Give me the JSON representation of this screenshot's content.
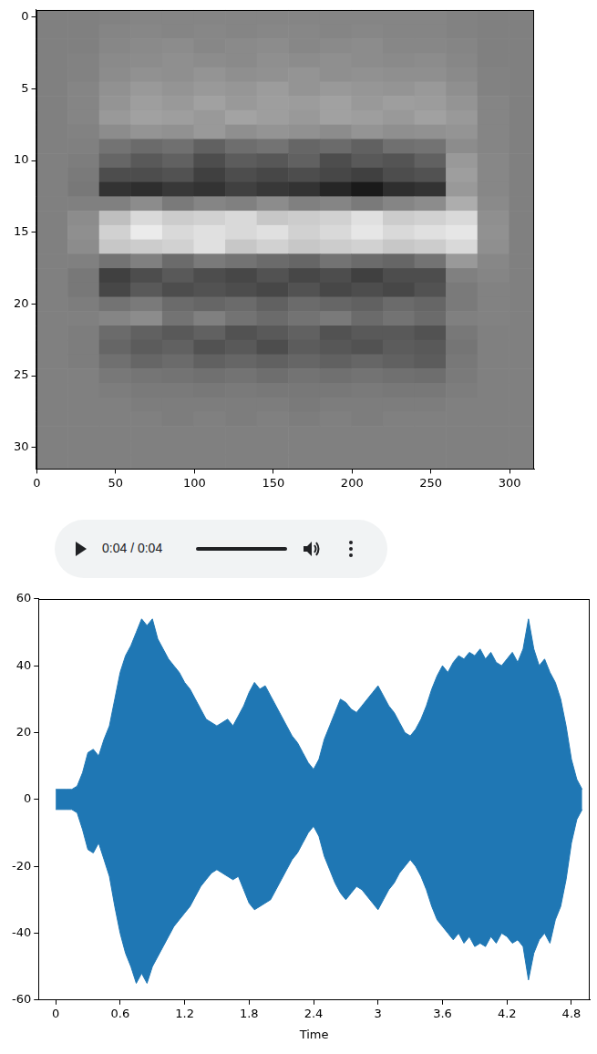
{
  "chart_data": [
    {
      "type": "heatmap",
      "color": "gray",
      "value_range": [
        0,
        1
      ],
      "xlim": [
        -0.5,
        315.5
      ],
      "ylim": [
        31.5,
        -0.5
      ],
      "xticks": [
        0,
        50,
        100,
        150,
        200,
        250,
        300
      ],
      "yticks": [
        0,
        5,
        10,
        15,
        20,
        25,
        30
      ],
      "x_edges": [
        -0.5,
        19.5,
        39.5,
        59.5,
        79.5,
        99.5,
        119.5,
        139.5,
        159.5,
        179.5,
        199.5,
        219.5,
        239.5,
        259.5,
        279.5,
        299.5,
        315.5
      ],
      "y_edges": [
        -0.5,
        0.5,
        1.5,
        2.5,
        3.5,
        4.5,
        5.5,
        6.5,
        7.5,
        8.5,
        9.5,
        10.5,
        11.5,
        12.5,
        13.5,
        14.5,
        15.5,
        16.5,
        17.5,
        18.5,
        19.5,
        20.5,
        21.5,
        22.5,
        23.5,
        24.5,
        25.5,
        26.5,
        27.5,
        28.5,
        29.5,
        30.5,
        31.5
      ],
      "cells": [
        [
          0.5,
          0.5,
          0.51,
          0.52,
          0.52,
          0.52,
          0.52,
          0.52,
          0.52,
          0.52,
          0.52,
          0.52,
          0.52,
          0.51,
          0.5,
          0.5
        ],
        [
          0.5,
          0.5,
          0.52,
          0.53,
          0.52,
          0.53,
          0.52,
          0.53,
          0.53,
          0.52,
          0.53,
          0.52,
          0.52,
          0.51,
          0.5,
          0.5
        ],
        [
          0.5,
          0.5,
          0.53,
          0.54,
          0.55,
          0.53,
          0.54,
          0.55,
          0.53,
          0.54,
          0.55,
          0.53,
          0.53,
          0.52,
          0.5,
          0.5
        ],
        [
          0.5,
          0.51,
          0.54,
          0.55,
          0.56,
          0.55,
          0.54,
          0.56,
          0.55,
          0.56,
          0.55,
          0.54,
          0.55,
          0.53,
          0.5,
          0.5
        ],
        [
          0.5,
          0.51,
          0.55,
          0.57,
          0.56,
          0.58,
          0.56,
          0.57,
          0.58,
          0.56,
          0.57,
          0.56,
          0.56,
          0.54,
          0.51,
          0.5
        ],
        [
          0.5,
          0.52,
          0.57,
          0.6,
          0.58,
          0.6,
          0.59,
          0.61,
          0.58,
          0.6,
          0.59,
          0.58,
          0.6,
          0.56,
          0.51,
          0.5
        ],
        [
          0.5,
          0.52,
          0.58,
          0.62,
          0.6,
          0.63,
          0.6,
          0.62,
          0.61,
          0.63,
          0.6,
          0.62,
          0.61,
          0.58,
          0.52,
          0.5
        ],
        [
          0.5,
          0.52,
          0.6,
          0.63,
          0.62,
          0.6,
          0.64,
          0.62,
          0.6,
          0.63,
          0.62,
          0.6,
          0.63,
          0.6,
          0.52,
          0.5
        ],
        [
          0.5,
          0.51,
          0.55,
          0.58,
          0.57,
          0.6,
          0.56,
          0.58,
          0.57,
          0.55,
          0.58,
          0.56,
          0.57,
          0.58,
          0.52,
          0.5
        ],
        [
          0.5,
          0.5,
          0.45,
          0.42,
          0.44,
          0.38,
          0.43,
          0.45,
          0.4,
          0.42,
          0.38,
          0.44,
          0.45,
          0.55,
          0.52,
          0.5
        ],
        [
          0.5,
          0.49,
          0.4,
          0.35,
          0.38,
          0.3,
          0.36,
          0.34,
          0.38,
          0.3,
          0.35,
          0.33,
          0.38,
          0.6,
          0.53,
          0.5
        ],
        [
          0.5,
          0.48,
          0.3,
          0.3,
          0.32,
          0.25,
          0.3,
          0.28,
          0.3,
          0.28,
          0.25,
          0.3,
          0.32,
          0.62,
          0.53,
          0.5
        ],
        [
          0.5,
          0.47,
          0.2,
          0.18,
          0.22,
          0.2,
          0.25,
          0.22,
          0.2,
          0.15,
          0.1,
          0.18,
          0.2,
          0.6,
          0.53,
          0.5
        ],
        [
          0.5,
          0.5,
          0.5,
          0.55,
          0.48,
          0.52,
          0.5,
          0.55,
          0.5,
          0.52,
          0.48,
          0.52,
          0.55,
          0.68,
          0.54,
          0.5
        ],
        [
          0.5,
          0.55,
          0.75,
          0.85,
          0.8,
          0.82,
          0.85,
          0.78,
          0.8,
          0.82,
          0.88,
          0.8,
          0.82,
          0.85,
          0.56,
          0.5
        ],
        [
          0.5,
          0.56,
          0.82,
          0.92,
          0.85,
          0.88,
          0.85,
          0.88,
          0.82,
          0.85,
          0.9,
          0.85,
          0.88,
          0.9,
          0.57,
          0.5
        ],
        [
          0.5,
          0.55,
          0.78,
          0.8,
          0.82,
          0.88,
          0.78,
          0.82,
          0.78,
          0.8,
          0.82,
          0.78,
          0.8,
          0.85,
          0.56,
          0.5
        ],
        [
          0.5,
          0.5,
          0.45,
          0.5,
          0.42,
          0.48,
          0.45,
          0.42,
          0.4,
          0.45,
          0.42,
          0.4,
          0.45,
          0.6,
          0.53,
          0.5
        ],
        [
          0.5,
          0.47,
          0.25,
          0.3,
          0.35,
          0.3,
          0.28,
          0.32,
          0.28,
          0.3,
          0.25,
          0.3,
          0.3,
          0.5,
          0.52,
          0.5
        ],
        [
          0.5,
          0.47,
          0.28,
          0.35,
          0.3,
          0.32,
          0.3,
          0.28,
          0.32,
          0.28,
          0.3,
          0.28,
          0.32,
          0.48,
          0.51,
          0.5
        ],
        [
          0.5,
          0.49,
          0.45,
          0.48,
          0.42,
          0.4,
          0.42,
          0.38,
          0.42,
          0.4,
          0.38,
          0.42,
          0.4,
          0.48,
          0.51,
          0.5
        ],
        [
          0.5,
          0.5,
          0.52,
          0.55,
          0.45,
          0.5,
          0.45,
          0.42,
          0.45,
          0.48,
          0.42,
          0.45,
          0.42,
          0.5,
          0.51,
          0.5
        ],
        [
          0.5,
          0.49,
          0.42,
          0.38,
          0.35,
          0.38,
          0.32,
          0.35,
          0.38,
          0.32,
          0.35,
          0.35,
          0.32,
          0.47,
          0.5,
          0.5
        ],
        [
          0.5,
          0.49,
          0.4,
          0.36,
          0.38,
          0.32,
          0.35,
          0.3,
          0.36,
          0.34,
          0.32,
          0.36,
          0.35,
          0.46,
          0.5,
          0.5
        ],
        [
          0.5,
          0.49,
          0.44,
          0.4,
          0.42,
          0.38,
          0.4,
          0.38,
          0.4,
          0.38,
          0.4,
          0.38,
          0.36,
          0.47,
          0.5,
          0.5
        ],
        [
          0.5,
          0.5,
          0.47,
          0.46,
          0.45,
          0.44,
          0.45,
          0.43,
          0.45,
          0.44,
          0.45,
          0.44,
          0.43,
          0.48,
          0.5,
          0.5
        ],
        [
          0.5,
          0.5,
          0.49,
          0.48,
          0.48,
          0.47,
          0.48,
          0.47,
          0.47,
          0.47,
          0.48,
          0.47,
          0.47,
          0.49,
          0.5,
          0.5
        ],
        [
          0.5,
          0.5,
          0.5,
          0.49,
          0.49,
          0.49,
          0.49,
          0.49,
          0.48,
          0.49,
          0.49,
          0.49,
          0.49,
          0.5,
          0.5,
          0.5
        ],
        [
          0.5,
          0.5,
          0.5,
          0.5,
          0.49,
          0.5,
          0.49,
          0.5,
          0.49,
          0.5,
          0.49,
          0.5,
          0.5,
          0.5,
          0.5,
          0.5
        ],
        [
          0.5,
          0.5,
          0.5,
          0.5,
          0.5,
          0.5,
          0.5,
          0.5,
          0.5,
          0.5,
          0.5,
          0.5,
          0.5,
          0.5,
          0.5,
          0.5
        ],
        [
          0.5,
          0.5,
          0.5,
          0.5,
          0.5,
          0.5,
          0.5,
          0.5,
          0.5,
          0.5,
          0.5,
          0.5,
          0.5,
          0.5,
          0.5,
          0.5
        ],
        [
          0.5,
          0.5,
          0.5,
          0.5,
          0.5,
          0.5,
          0.5,
          0.5,
          0.5,
          0.5,
          0.5,
          0.5,
          0.5,
          0.5,
          0.5,
          0.5
        ]
      ],
      "grid": false
    },
    {
      "type": "area",
      "xlabel": "Time",
      "color": "#1f77b4",
      "xlim": [
        -0.16,
        4.97
      ],
      "ylim": [
        -60,
        60
      ],
      "xticks": [
        0,
        0.6,
        1.2,
        1.8,
        2.4,
        3,
        3.6,
        4.2,
        4.8
      ],
      "yticks": [
        -60,
        -40,
        -20,
        0,
        20,
        40,
        60
      ],
      "x": [
        0,
        0.05,
        0.1,
        0.15,
        0.2,
        0.25,
        0.3,
        0.35,
        0.4,
        0.45,
        0.5,
        0.55,
        0.6,
        0.65,
        0.7,
        0.75,
        0.8,
        0.85,
        0.9,
        0.95,
        1.0,
        1.05,
        1.1,
        1.15,
        1.2,
        1.25,
        1.3,
        1.35,
        1.4,
        1.45,
        1.5,
        1.55,
        1.6,
        1.65,
        1.7,
        1.75,
        1.8,
        1.85,
        1.9,
        1.95,
        2.0,
        2.05,
        2.1,
        2.15,
        2.2,
        2.25,
        2.3,
        2.35,
        2.4,
        2.45,
        2.5,
        2.55,
        2.6,
        2.65,
        2.7,
        2.75,
        2.8,
        2.85,
        2.9,
        2.95,
        3.0,
        3.05,
        3.1,
        3.15,
        3.2,
        3.25,
        3.3,
        3.35,
        3.4,
        3.45,
        3.5,
        3.55,
        3.6,
        3.65,
        3.7,
        3.75,
        3.8,
        3.85,
        3.9,
        3.95,
        4.0,
        4.05,
        4.1,
        4.15,
        4.2,
        4.25,
        4.3,
        4.35,
        4.4,
        4.45,
        4.5,
        4.55,
        4.6,
        4.65,
        4.7,
        4.75,
        4.8,
        4.85,
        4.9
      ],
      "values": [
        3,
        3,
        3,
        3,
        4,
        8,
        14,
        15,
        13,
        18,
        22,
        30,
        38,
        43,
        46,
        50,
        54,
        52,
        54,
        48,
        45,
        42,
        40,
        38,
        35,
        33,
        30,
        27,
        24,
        23,
        22,
        23,
        24,
        22,
        25,
        28,
        32,
        35,
        33,
        34,
        31,
        28,
        25,
        22,
        19,
        17,
        14,
        11,
        9,
        12,
        18,
        22,
        26,
        30,
        29,
        27,
        26,
        28,
        30,
        32,
        34,
        31,
        28,
        26,
        23,
        20,
        19,
        21,
        24,
        28,
        33,
        37,
        40,
        38,
        41,
        43,
        42,
        44,
        43,
        45,
        42,
        44,
        41,
        40,
        42,
        44,
        41,
        45,
        54,
        45,
        40,
        42,
        38,
        35,
        30,
        22,
        12,
        6,
        3
      ],
      "values_min": [
        -3,
        -3,
        -3,
        -3,
        -4,
        -9,
        -15,
        -16,
        -13,
        -18,
        -23,
        -32,
        -40,
        -46,
        -50,
        -55,
        -52,
        -55,
        -50,
        -47,
        -44,
        -41,
        -38,
        -36,
        -34,
        -32,
        -29,
        -26,
        -24,
        -22,
        -21,
        -22,
        -23,
        -24,
        -23,
        -27,
        -31,
        -33,
        -32,
        -31,
        -30,
        -27,
        -24,
        -21,
        -18,
        -16,
        -13,
        -10,
        -8,
        -11,
        -17,
        -21,
        -25,
        -28,
        -30,
        -28,
        -26,
        -27,
        -29,
        -31,
        -33,
        -30,
        -27,
        -25,
        -22,
        -20,
        -18,
        -20,
        -23,
        -27,
        -32,
        -36,
        -38,
        -40,
        -42,
        -40,
        -43,
        -41,
        -44,
        -43,
        -44,
        -41,
        -43,
        -40,
        -41,
        -43,
        -42,
        -44,
        -54,
        -46,
        -42,
        -40,
        -43,
        -36,
        -32,
        -24,
        -13,
        -6,
        -3
      ],
      "grid": false
    }
  ],
  "audio_player": {
    "time": "0:04 / 0:04"
  }
}
